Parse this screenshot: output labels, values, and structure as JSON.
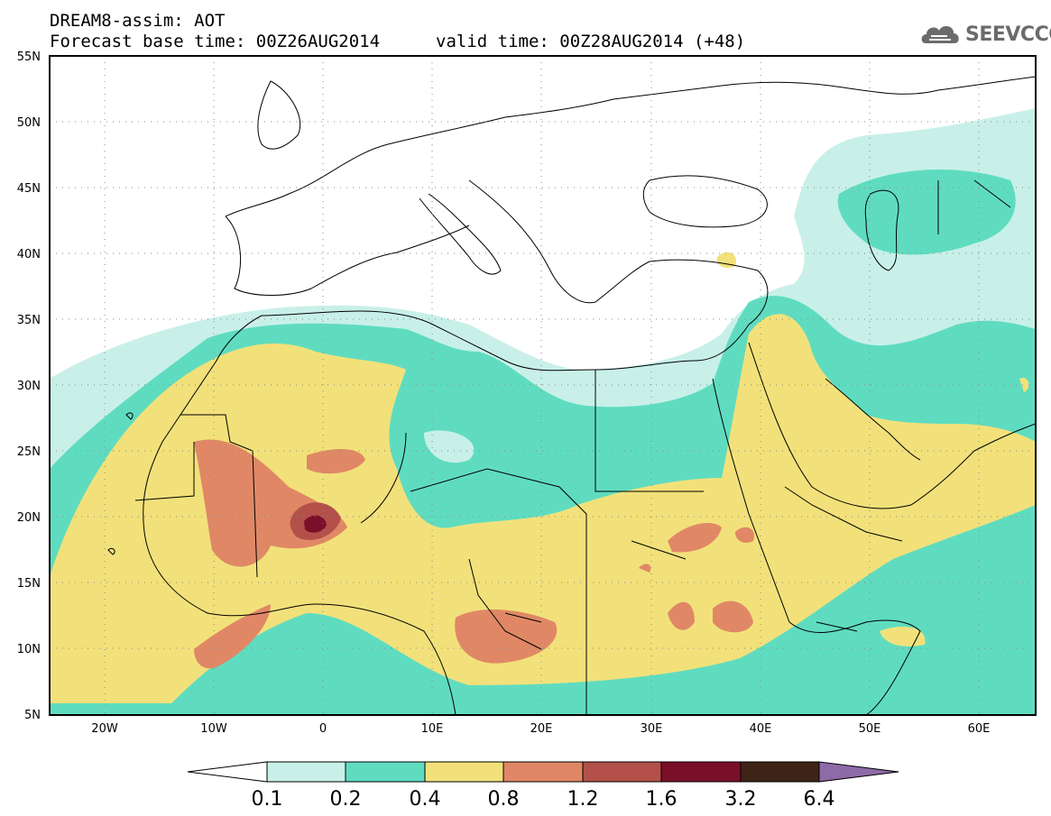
{
  "header": {
    "title": "DREAM8-assim: AOT",
    "base_time": "Forecast base time: 00Z26AUG2014",
    "valid_time": "valid time: 00Z28AUG2014 (+48)"
  },
  "logo": {
    "text": "SEEVCCC",
    "icon": "cloud-icon"
  },
  "map": {
    "lat_labels": [
      "55N",
      "50N",
      "45N",
      "40N",
      "35N",
      "30N",
      "25N",
      "20N",
      "15N",
      "10N",
      "5N"
    ],
    "lon_labels": [
      "20W",
      "10W",
      "0",
      "10E",
      "20E",
      "30E",
      "40E",
      "50E",
      "60E"
    ],
    "colors": {
      "c0": "#c8f0e8",
      "c1": "#5fdcc0",
      "c2": "#f2e17a",
      "c3": "#e08866",
      "c4": "#b4504a",
      "c5": "#7a0f2a",
      "c6": "#3e2416",
      "c7": "#8e6aa8"
    }
  },
  "colorbar": {
    "ticks": [
      "0.1",
      "0.2",
      "0.4",
      "0.8",
      "1.2",
      "1.6",
      "3.2",
      "6.4"
    ]
  }
}
